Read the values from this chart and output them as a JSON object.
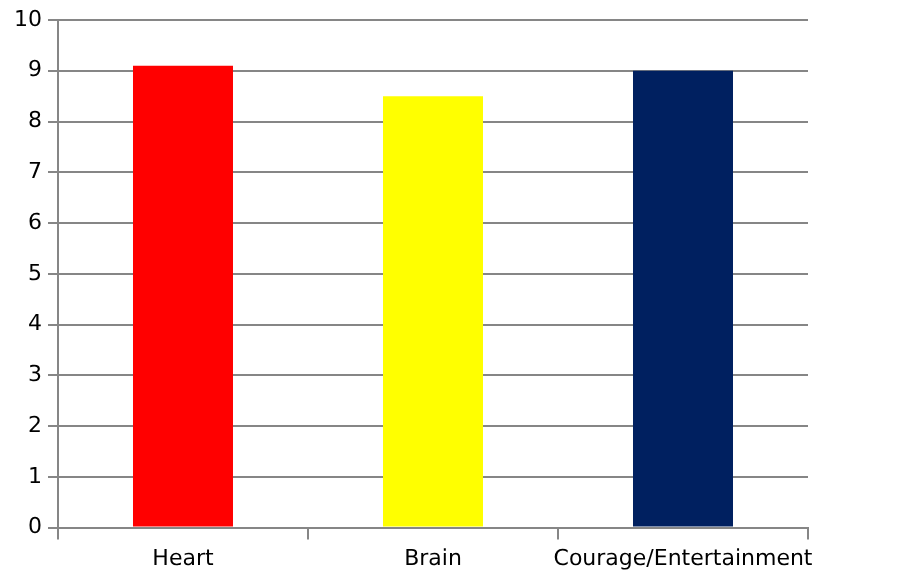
{
  "chart_data": {
    "type": "bar",
    "categories": [
      "Heart",
      "Brain",
      "Courage/Entertainment"
    ],
    "values": [
      9.1,
      8.5,
      9.0
    ],
    "colors": [
      "#ff0000",
      "#ffff00",
      "#002060"
    ],
    "ylim": [
      0,
      10
    ],
    "yticks": [
      0,
      1,
      2,
      3,
      4,
      5,
      6,
      7,
      8,
      9,
      10
    ],
    "grid": "y",
    "legend": false
  }
}
